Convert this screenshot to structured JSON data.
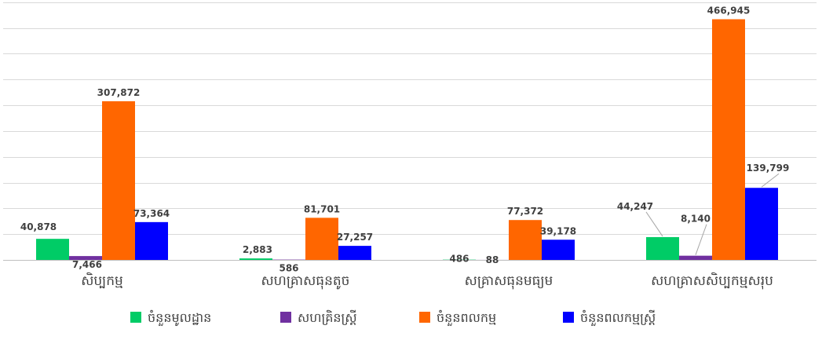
{
  "chart_data": {
    "type": "bar",
    "categories": [
      "សិប្បកម្ម",
      "សហគ្រាសធុនតូច",
      "សគ្រាសធុនមធ្យម",
      "សហគ្រាសសិប្បកម្មសរុប"
    ],
    "series": [
      {
        "name": "ចំនួនមូលដ្ឋាន",
        "color": "#00cc66",
        "values": [
          40878,
          2883,
          486,
          44247
        ],
        "labels": [
          "40,878",
          "2,883",
          "486",
          "44,247"
        ]
      },
      {
        "name": "សហគ្រិនស្ត្រី",
        "color": "#7030a0",
        "values": [
          7466,
          586,
          88,
          8140
        ],
        "labels": [
          "7,466",
          "586",
          "88",
          "8,140"
        ]
      },
      {
        "name": "ចំនួនពលកម្ម",
        "color": "#ff6600",
        "values": [
          307872,
          81701,
          77372,
          466945
        ],
        "labels": [
          "307,872",
          "81,701",
          "77,372",
          "466,945"
        ]
      },
      {
        "name": "ចំនួនពលកម្មស្ត្រី",
        "color": "#0000ff",
        "values": [
          73364,
          27257,
          39178,
          139799
        ],
        "labels": [
          "73,364",
          "27,257",
          "39,178",
          "139,799"
        ]
      }
    ],
    "ylim": [
      0,
      500000
    ],
    "grid": true,
    "legend": "bottom"
  }
}
